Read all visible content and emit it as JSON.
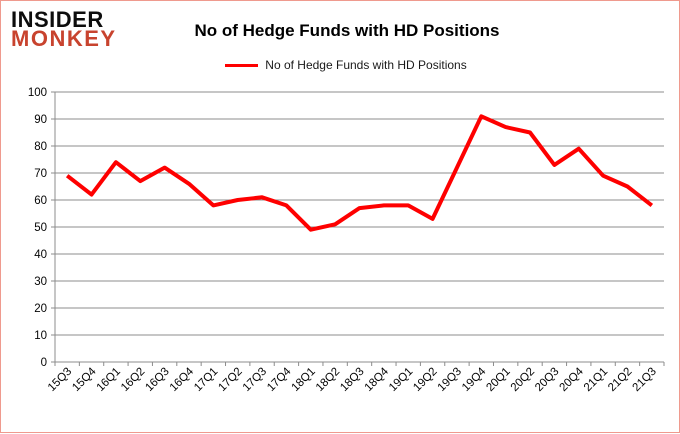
{
  "brand": {
    "line1": "INSIDER",
    "line2": "MONKEY"
  },
  "title": "No of Hedge Funds with HD Positions",
  "legend": {
    "label": "No of Hedge Funds with HD Positions"
  },
  "colors": {
    "series_line": "#fe0000",
    "grid": "#8c8c8c",
    "axis": "#8c8c8c",
    "text": "#050505",
    "brand_black": "#0d0d0d",
    "brand_red": "#c8432e",
    "page_border": "#ef9a8e",
    "background": "#ffffff"
  },
  "chart_data": {
    "type": "line",
    "title": "No of Hedge Funds with HD Positions",
    "categories": [
      "15Q3",
      "15Q4",
      "16Q1",
      "16Q2",
      "16Q3",
      "16Q4",
      "17Q1",
      "17Q2",
      "17Q3",
      "17Q4",
      "18Q1",
      "18Q2",
      "18Q3",
      "18Q4",
      "19Q1",
      "19Q2",
      "19Q3",
      "19Q4",
      "20Q1",
      "20Q2",
      "20Q3",
      "20Q4",
      "21Q1",
      "21Q2",
      "21Q3"
    ],
    "series": [
      {
        "name": "No of Hedge Funds with HD Positions",
        "values": [
          69,
          62,
          74,
          67,
          72,
          66,
          58,
          60,
          61,
          58,
          49,
          51,
          57,
          58,
          58,
          53,
          72,
          91,
          87,
          85,
          73,
          79,
          69,
          65,
          58
        ]
      }
    ],
    "xlabel": "",
    "ylabel": "",
    "ylim": [
      0,
      100
    ],
    "yticks": [
      0,
      10,
      20,
      30,
      40,
      50,
      60,
      70,
      80,
      90,
      100
    ],
    "grid": true,
    "legend_position": "top",
    "x_label_rotation": -45
  }
}
